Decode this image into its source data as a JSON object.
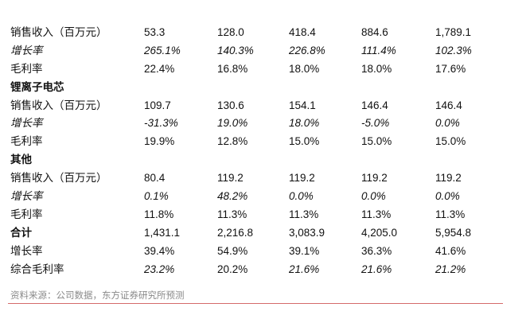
{
  "rows": [
    {
      "type": "data",
      "label": "销售收入（百万元）",
      "values": [
        "53.3",
        "128.0",
        "418.4",
        "884.6",
        "1,789.1"
      ]
    },
    {
      "type": "growth",
      "label": "增长率",
      "values": [
        "265.1%",
        "140.3%",
        "226.8%",
        "111.4%",
        "102.3%"
      ]
    },
    {
      "type": "data",
      "label": "毛利率",
      "values": [
        "22.4%",
        "16.8%",
        "18.0%",
        "18.0%",
        "17.6%"
      ]
    },
    {
      "type": "section",
      "label": "锂离子电芯",
      "values": []
    },
    {
      "type": "data",
      "label": "销售收入（百万元）",
      "values": [
        "109.7",
        "130.6",
        "154.1",
        "146.4",
        "146.4"
      ]
    },
    {
      "type": "growth",
      "label": "增长率",
      "values": [
        "-31.3%",
        "19.0%",
        "18.0%",
        "-5.0%",
        "0.0%"
      ]
    },
    {
      "type": "data",
      "label": "毛利率",
      "values": [
        "19.9%",
        "12.8%",
        "15.0%",
        "15.0%",
        "15.0%"
      ]
    },
    {
      "type": "section",
      "label": "其他",
      "values": []
    },
    {
      "type": "data",
      "label": "销售收入（百万元）",
      "values": [
        "80.4",
        "119.2",
        "119.2",
        "119.2",
        "119.2"
      ]
    },
    {
      "type": "growth",
      "label": "增长率",
      "values": [
        "0.1%",
        "48.2%",
        "0.0%",
        "0.0%",
        "0.0%"
      ]
    },
    {
      "type": "data",
      "label": "毛利率",
      "values": [
        "11.8%",
        "11.3%",
        "11.3%",
        "11.3%",
        "11.3%"
      ]
    },
    {
      "type": "section",
      "label": "合计",
      "values": [
        "1,431.1",
        "2,216.8",
        "3,083.9",
        "4,205.0",
        "5,954.8"
      ]
    },
    {
      "type": "data",
      "label": "增长率",
      "values": [
        "39.4%",
        "54.9%",
        "39.1%",
        "36.3%",
        "41.6%"
      ]
    },
    {
      "type": "data",
      "label": "综合毛利率",
      "values": [
        "23.2%",
        "20.2%",
        "21.6%",
        "21.6%",
        "21.2%"
      ],
      "italic_cols": [
        0,
        2,
        3,
        4
      ]
    }
  ],
  "source": "资料来源：公司数据，东方证券研究所预测",
  "colors": {
    "rule": "#d46a6a",
    "source_text": "#8a8a8a"
  }
}
